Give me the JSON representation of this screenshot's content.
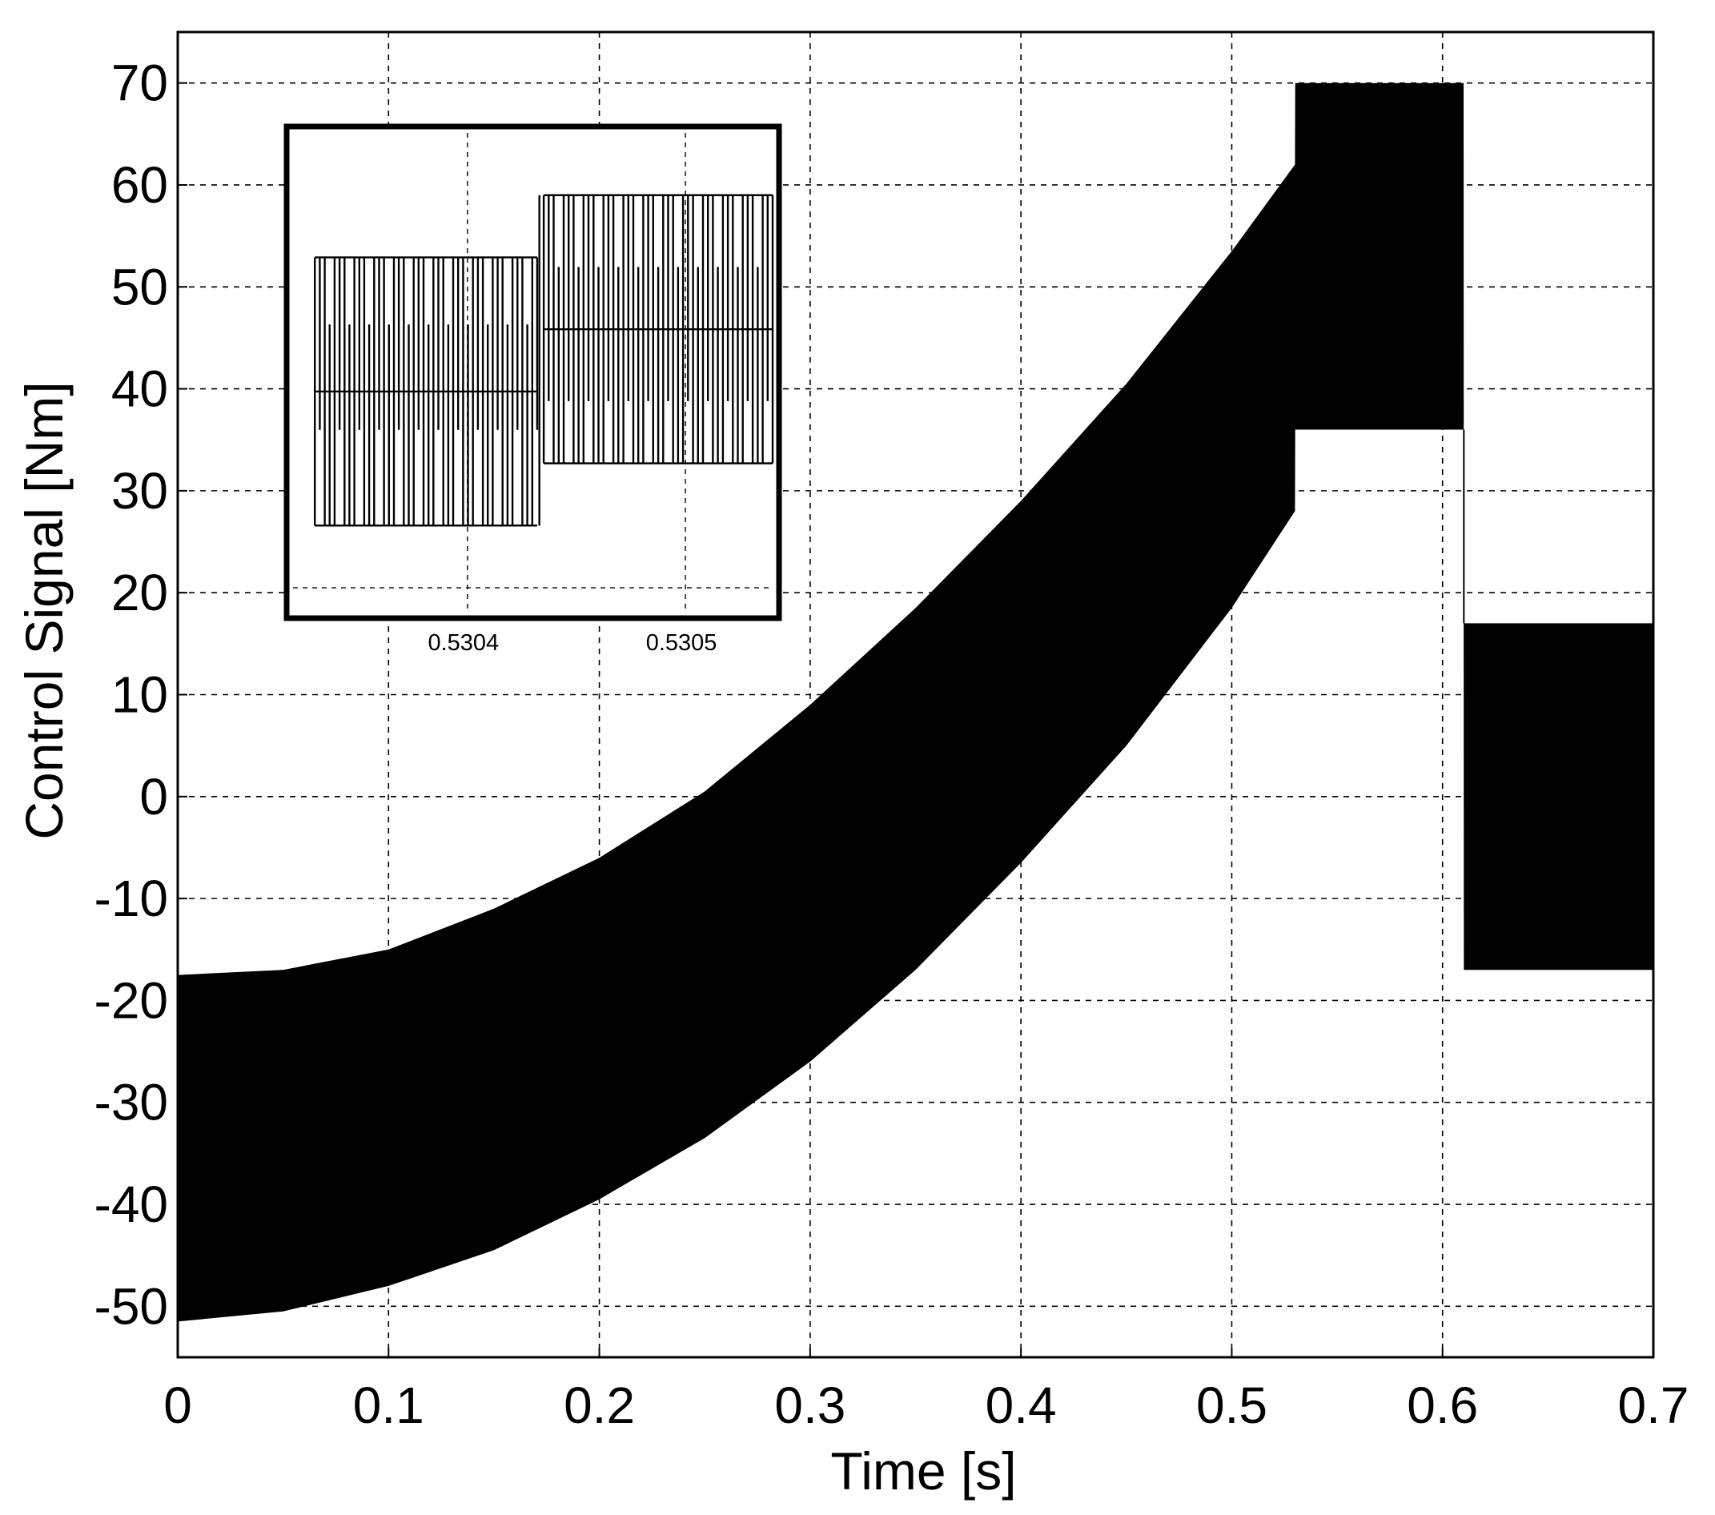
{
  "chart_data": {
    "type": "area",
    "title": "",
    "xlabel": "Time [s]",
    "ylabel": "Control Signal [Nm]",
    "xlim": [
      0,
      0.7
    ],
    "ylim": [
      -55,
      75
    ],
    "xticks": [
      0,
      0.1,
      0.2,
      0.3,
      0.4,
      0.5,
      0.6,
      0.7
    ],
    "xtick_labels": [
      "0",
      "0.1",
      "0.2",
      "0.3",
      "0.4",
      "0.5",
      "0.6",
      "0.7"
    ],
    "yticks": [
      -50,
      -40,
      -30,
      -20,
      -10,
      0,
      10,
      20,
      30,
      40,
      50,
      60,
      70
    ],
    "ytick_labels": [
      "-50",
      "-40",
      "-30",
      "-20",
      "-10",
      "0",
      "10",
      "20",
      "30",
      "40",
      "50",
      "60",
      "70"
    ],
    "grid": true,
    "colors": {
      "signal": "#000000",
      "grid": "#000000",
      "background": "#ffffff"
    },
    "series": [
      {
        "description": "chattering envelope (lower and upper bounds)",
        "x": [
          0,
          0.05,
          0.1,
          0.15,
          0.2,
          0.25,
          0.3,
          0.35,
          0.4,
          0.45,
          0.5,
          0.53,
          0.5301,
          0.61,
          0.6101,
          0.7
        ],
        "lower": [
          -51.5,
          -50.5,
          -48,
          -44.5,
          -39.5,
          -33.5,
          -26,
          -17,
          -6.5,
          5,
          18.5,
          28,
          36,
          36,
          -17,
          -17
        ],
        "upper": [
          -17.5,
          -17,
          -15,
          -11,
          -6,
          0.5,
          9,
          18.5,
          29,
          40.5,
          53.5,
          62,
          70,
          70,
          17,
          17
        ]
      }
    ],
    "inset": {
      "xlim": [
        0.53032,
        0.53054
      ],
      "ylim": [
        16,
        66
      ],
      "xticks": [
        0.5304,
        0.5305
      ],
      "xtick_labels": [
        "0.5304",
        "0.5305"
      ],
      "grid": true,
      "segments": [
        {
          "x_start": 0.53033,
          "x_end": 0.530432,
          "low": 25,
          "mid": 39,
          "high": 53,
          "mid_low": 35,
          "mid_high": 46
        },
        {
          "x_start": 0.530435,
          "x_end": 0.53054,
          "low": 31.5,
          "mid": 45.5,
          "high": 59.5,
          "mid_low": 38,
          "mid_high": 52
        }
      ]
    }
  }
}
